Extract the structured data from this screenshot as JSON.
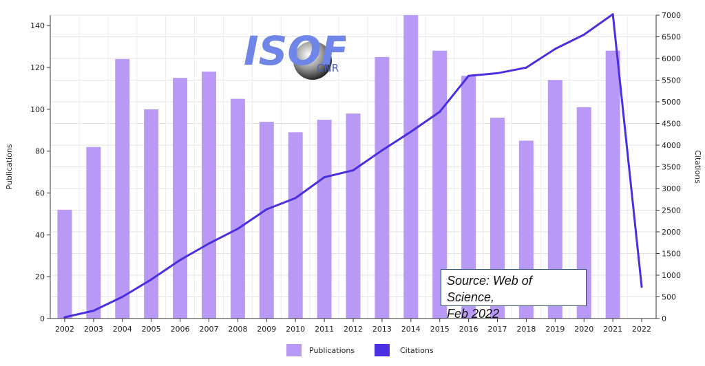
{
  "chart_data": {
    "type": "bar+line",
    "categories": [
      "2002",
      "2003",
      "2004",
      "2005",
      "2006",
      "2007",
      "2008",
      "2009",
      "2010",
      "2011",
      "2012",
      "2013",
      "2014",
      "2015",
      "2016",
      "2017",
      "2018",
      "2019",
      "2020",
      "2021",
      "2022"
    ],
    "series": [
      {
        "name": "Publications",
        "type": "bar",
        "axis": "left",
        "color": "#b899f5",
        "values": [
          52,
          82,
          124,
          100,
          115,
          118,
          105,
          94,
          89,
          95,
          98,
          125,
          145,
          128,
          116,
          96,
          85,
          114,
          101,
          128,
          0
        ]
      },
      {
        "name": "Citations",
        "type": "line",
        "axis": "right",
        "color": "#4a2fe0",
        "values": [
          30,
          180,
          500,
          900,
          1350,
          1730,
          2070,
          2520,
          2780,
          3260,
          3420,
          3880,
          4310,
          4770,
          5600,
          5660,
          5790,
          6220,
          6550,
          7020,
          730
        ]
      }
    ],
    "ylabel": "Publications",
    "y2label": "Citations",
    "ylim": [
      0,
      145
    ],
    "y2lim": [
      0,
      7000
    ],
    "yticks": [
      0,
      20,
      40,
      60,
      80,
      100,
      120,
      140
    ],
    "y2ticks": [
      0,
      500,
      1000,
      1500,
      2000,
      2500,
      3000,
      3500,
      4000,
      4500,
      5000,
      5500,
      6000,
      6500,
      7000
    ],
    "grid": true,
    "legend_position": "bottom-center",
    "annotation_lines": [
      "Source: Web of Science,",
      "Feb 2022"
    ]
  },
  "logo": {
    "main": "ISOF",
    "sub": "CNR"
  }
}
